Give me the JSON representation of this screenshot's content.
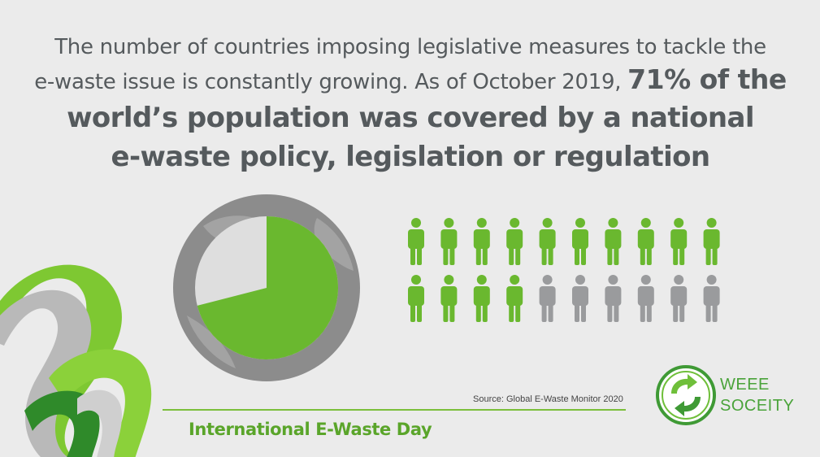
{
  "headline": {
    "line1": "The number of countries imposing legislative measures to tackle the",
    "line2_normal": "e-waste issue is constantly growing.  As of October 2019, ",
    "line2_bold": "71% of the",
    "line3": "world’s population was covered by a national",
    "line4": "e-waste policy, legislation or regulation"
  },
  "covered_percent": 71,
  "people": {
    "total": 20,
    "covered": 14,
    "per_row": 10
  },
  "colors": {
    "green": "#6ab82f",
    "grey_person": "#9a9b9d",
    "globe_ring": "#8c8c8c",
    "pie_rest": "#dedede",
    "text": "#555a5d"
  },
  "source": "Source: Global E-Waste Monitor 2020",
  "footer_title": "International E-Waste Day",
  "logo": {
    "line1": "WEEE",
    "line2": "SOCEITY",
    "icon": "recycle-arrows-icon"
  }
}
